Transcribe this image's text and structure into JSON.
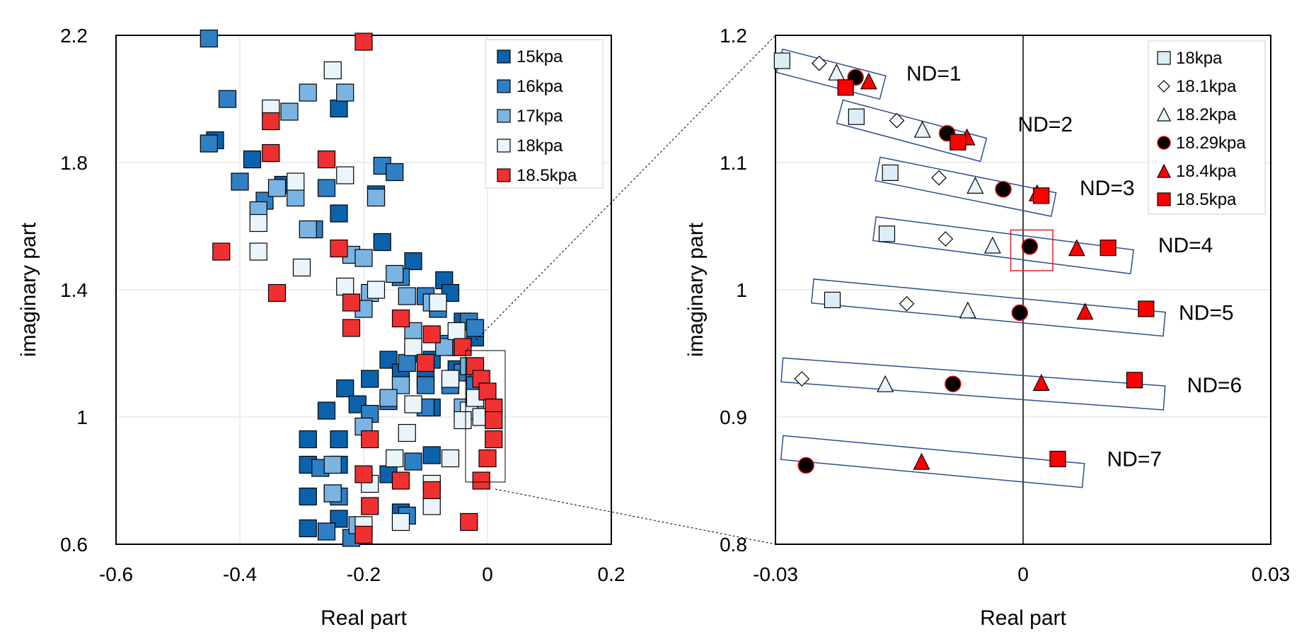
{
  "chart_data": [
    {
      "type": "scatter",
      "title": "",
      "xlabel": "Real part",
      "ylabel": "imaginary part",
      "xlim": [
        -0.6,
        0.2
      ],
      "ylim": [
        0.6,
        2.2
      ],
      "xticks": [
        "-0.6",
        "-0.4",
        "-0.2",
        "0",
        "0.2"
      ],
      "yticks": [
        "0.6",
        "1",
        "1.4",
        "1.8",
        "2.2"
      ],
      "ytick_values": [
        0.6,
        1.0,
        1.4,
        1.8,
        2.2
      ],
      "xtick_values": [
        -0.6,
        -0.4,
        -0.2,
        0,
        0.2
      ],
      "grid": true,
      "legend_position": "top-right",
      "series": [
        {
          "name": "15kpa",
          "color": "#0a62ad",
          "marker": "square",
          "points": [
            [
              -0.44,
              1.87
            ],
            [
              -0.38,
              1.81
            ],
            [
              -0.33,
              1.73
            ],
            [
              -0.24,
              1.64
            ],
            [
              -0.24,
              1.97
            ],
            [
              -0.18,
              1.7
            ],
            [
              -0.17,
              1.55
            ],
            [
              -0.12,
              1.49
            ],
            [
              -0.07,
              1.43
            ],
            [
              -0.06,
              1.39
            ],
            [
              -0.04,
              1.3
            ],
            [
              -0.05,
              1.22
            ],
            [
              -0.09,
              1.18
            ],
            [
              -0.12,
              1.2
            ],
            [
              -0.16,
              1.18
            ],
            [
              -0.14,
              1.14
            ],
            [
              -0.1,
              1.12
            ],
            [
              -0.19,
              1.12
            ],
            [
              -0.23,
              1.09
            ],
            [
              -0.21,
              1.04
            ],
            [
              -0.26,
              1.02
            ],
            [
              -0.24,
              0.93
            ],
            [
              -0.29,
              0.93
            ],
            [
              -0.29,
              0.85
            ],
            [
              -0.29,
              0.75
            ],
            [
              -0.24,
              0.85
            ],
            [
              -0.25,
              0.76
            ],
            [
              -0.24,
              0.68
            ],
            [
              -0.29,
              0.65
            ],
            [
              -0.16,
              0.82
            ],
            [
              -0.09,
              1.03
            ],
            [
              -0.05,
              1.15
            ],
            [
              -0.02,
              1.25
            ],
            [
              -0.09,
              0.88
            ],
            [
              -0.14,
              0.7
            ]
          ]
        },
        {
          "name": "16kpa",
          "color": "#2f7fc4",
          "marker": "square",
          "points": [
            [
              -0.45,
              2.19
            ],
            [
              -0.42,
              2.0
            ],
            [
              -0.45,
              1.86
            ],
            [
              -0.4,
              1.74
            ],
            [
              -0.36,
              1.68
            ],
            [
              -0.28,
              1.59
            ],
            [
              -0.26,
              1.72
            ],
            [
              -0.17,
              1.79
            ],
            [
              -0.15,
              1.77
            ],
            [
              -0.14,
              1.44
            ],
            [
              -0.1,
              1.38
            ],
            [
              -0.08,
              1.34
            ],
            [
              -0.03,
              1.3
            ],
            [
              -0.02,
              1.28
            ],
            [
              -0.07,
              1.23
            ],
            [
              -0.13,
              1.17
            ],
            [
              -0.19,
              1.01
            ],
            [
              -0.1,
              1.1
            ],
            [
              -0.16,
              1.05
            ],
            [
              -0.04,
              1.14
            ],
            [
              -0.02,
              1.1
            ],
            [
              -0.05,
              1.22
            ],
            [
              -0.27,
              0.84
            ],
            [
              -0.24,
              0.75
            ],
            [
              -0.26,
              0.64
            ],
            [
              -0.22,
              0.62
            ],
            [
              -0.13,
              0.69
            ],
            [
              -0.1,
              1.03
            ],
            [
              -0.06,
              1.1
            ],
            [
              -0.12,
              0.86
            ]
          ]
        },
        {
          "name": "17kpa",
          "color": "#7ab4e2",
          "marker": "square",
          "points": [
            [
              -0.29,
              2.02
            ],
            [
              -0.23,
              2.02
            ],
            [
              -0.32,
              1.96
            ],
            [
              -0.34,
              1.72
            ],
            [
              -0.31,
              1.69
            ],
            [
              -0.37,
              1.65
            ],
            [
              -0.29,
              1.59
            ],
            [
              -0.22,
              1.51
            ],
            [
              -0.2,
              1.5
            ],
            [
              -0.18,
              1.69
            ],
            [
              -0.19,
              1.39
            ],
            [
              -0.15,
              1.45
            ],
            [
              -0.13,
              1.38
            ],
            [
              -0.12,
              1.27
            ],
            [
              -0.09,
              1.36
            ],
            [
              -0.07,
              1.22
            ],
            [
              -0.2,
              1.34
            ],
            [
              -0.14,
              1.1
            ],
            [
              -0.03,
              1.16
            ],
            [
              -0.04,
              1.03
            ],
            [
              -0.02,
              1.05
            ],
            [
              -0.16,
              1.06
            ],
            [
              -0.2,
              0.97
            ],
            [
              -0.25,
              0.85
            ],
            [
              -0.21,
              0.66
            ],
            [
              -0.25,
              0.76
            ]
          ]
        },
        {
          "name": "18kpa",
          "color": "#eaf5fb",
          "marker": "square",
          "points": [
            [
              -0.25,
              2.09
            ],
            [
              -0.35,
              1.97
            ],
            [
              -0.31,
              1.74
            ],
            [
              -0.37,
              1.61
            ],
            [
              -0.37,
              1.52
            ],
            [
              -0.3,
              1.47
            ],
            [
              -0.23,
              1.76
            ],
            [
              -0.23,
              1.41
            ],
            [
              -0.18,
              1.4
            ],
            [
              -0.12,
              1.22
            ],
            [
              -0.08,
              1.36
            ],
            [
              -0.05,
              1.27
            ],
            [
              -0.12,
              1.04
            ],
            [
              -0.06,
              1.12
            ],
            [
              -0.03,
              1.02
            ],
            [
              -0.02,
              1.06
            ],
            [
              -0.04,
              0.99
            ],
            [
              -0.13,
              0.95
            ],
            [
              -0.15,
              0.87
            ],
            [
              -0.06,
              0.87
            ],
            [
              -0.09,
              0.79
            ],
            [
              -0.01,
              1.0
            ],
            [
              -0.14,
              0.67
            ],
            [
              -0.19,
              0.79
            ],
            [
              -0.09,
              0.72
            ],
            [
              -0.2,
              0.66
            ]
          ]
        },
        {
          "name": "18.5kpa",
          "color": "#f03030",
          "marker": "square",
          "points": [
            [
              -0.2,
              2.18
            ],
            [
              -0.35,
              1.93
            ],
            [
              -0.35,
              1.83
            ],
            [
              -0.26,
              1.81
            ],
            [
              -0.43,
              1.52
            ],
            [
              -0.24,
              1.53
            ],
            [
              -0.34,
              1.39
            ],
            [
              -0.22,
              1.36
            ],
            [
              -0.22,
              1.28
            ],
            [
              -0.14,
              1.31
            ],
            [
              -0.09,
              1.26
            ],
            [
              -0.04,
              1.22
            ],
            [
              -0.02,
              1.16
            ],
            [
              -0.1,
              1.17
            ],
            [
              -0.01,
              1.12
            ],
            [
              0.0,
              1.08
            ],
            [
              0.01,
              1.03
            ],
            [
              0.01,
              0.99
            ],
            [
              0.01,
              0.93
            ],
            [
              0.0,
              0.87
            ],
            [
              -0.01,
              0.8
            ],
            [
              -0.19,
              0.93
            ],
            [
              -0.2,
              0.82
            ],
            [
              -0.19,
              0.72
            ],
            [
              -0.2,
              0.63
            ],
            [
              -0.14,
              0.8
            ],
            [
              -0.09,
              0.77
            ],
            [
              -0.03,
              0.67
            ]
          ]
        }
      ]
    },
    {
      "type": "scatter",
      "title": "",
      "xlabel": "Real part",
      "ylabel": "imaginary part",
      "xlim": [
        -0.03,
        0.03
      ],
      "ylim": [
        0.8,
        1.2
      ],
      "xticks": [
        "-0.03",
        "0",
        "0.03"
      ],
      "xtick_values": [
        -0.03,
        0,
        0.03
      ],
      "yticks": [
        "0.8",
        "0.9",
        "1",
        "1.1",
        "1.2"
      ],
      "ytick_values": [
        0.8,
        0.9,
        1.0,
        1.1,
        1.2
      ],
      "grid": true,
      "legend_position": "top-right",
      "series": [
        {
          "name": "18kpa",
          "marker": "square",
          "color": "#d9eef7",
          "points": [
            [
              -0.0292,
              1.18
            ],
            [
              -0.0202,
              1.136
            ],
            [
              -0.0161,
              1.092
            ],
            [
              -0.0165,
              1.044
            ],
            [
              -0.0231,
              0.992
            ]
          ]
        },
        {
          "name": "18.1kpa",
          "marker": "diamond",
          "color": "#ffffff",
          "points": [
            [
              -0.0247,
              1.178
            ],
            [
              -0.0153,
              1.133
            ],
            [
              -0.0102,
              1.088
            ],
            [
              -0.0094,
              1.04
            ],
            [
              -0.0141,
              0.989
            ],
            [
              -0.0268,
              0.93
            ]
          ]
        },
        {
          "name": "18.2kpa",
          "marker": "triangle",
          "color": "#e8f4fb",
          "points": [
            [
              -0.0226,
              1.171
            ],
            [
              -0.0122,
              1.126
            ],
            [
              -0.0058,
              1.082
            ],
            [
              -0.0037,
              1.035
            ],
            [
              -0.0067,
              0.984
            ],
            [
              -0.0167,
              0.926
            ]
          ]
        },
        {
          "name": "18.29kpa",
          "marker": "circle",
          "color": "#000000",
          "points": [
            [
              -0.0203,
              1.167
            ],
            [
              -0.0092,
              1.123
            ],
            [
              -0.0024,
              1.079
            ],
            [
              0.0008,
              1.034
            ],
            [
              -0.0004,
              0.982
            ],
            [
              -0.0085,
              0.926
            ],
            [
              -0.0263,
              0.862
            ]
          ]
        },
        {
          "name": "18.4kpa",
          "marker": "triangle",
          "color": "#ff0000",
          "points": [
            [
              -0.0187,
              1.164
            ],
            [
              -0.0068,
              1.12
            ],
            [
              0.0017,
              1.076
            ],
            [
              0.0065,
              1.033
            ],
            [
              0.0075,
              0.983
            ],
            [
              0.0022,
              0.927
            ],
            [
              -0.0123,
              0.865
            ]
          ]
        },
        {
          "name": "18.5kpa",
          "marker": "square",
          "color": "#ff0000",
          "points": [
            [
              -0.0215,
              1.159
            ],
            [
              -0.0079,
              1.116
            ],
            [
              0.0022,
              1.074
            ],
            [
              0.0103,
              1.033
            ],
            [
              0.0149,
              0.985
            ],
            [
              0.0135,
              0.929
            ],
            [
              0.0042,
              0.867
            ]
          ]
        }
      ],
      "annotations": [
        "ND=1",
        "ND=2",
        "ND=3",
        "ND=4",
        "ND=5",
        "ND=6",
        "ND=7"
      ],
      "annotation_points": [
        [
          -0.015,
          1.17
        ],
        [
          -0.0015,
          1.13
        ],
        [
          0.006,
          1.08
        ],
        [
          0.0155,
          1.035
        ],
        [
          0.018,
          0.982
        ],
        [
          0.019,
          0.925
        ],
        [
          0.0093,
          0.867
        ]
      ],
      "groups": [
        {
          "y": [
            1.18,
            1.159
          ],
          "x": [
            -0.0295,
            -0.017
          ]
        },
        {
          "y": [
            1.14,
            1.11
          ],
          "x": [
            -0.0222,
            -0.0048
          ]
        },
        {
          "y": [
            1.095,
            1.067
          ],
          "x": [
            -0.0176,
            0.0037
          ]
        },
        {
          "y": [
            1.048,
            1.022
          ],
          "x": [
            -0.018,
            0.0132
          ]
        },
        {
          "y": [
            0.999,
            0.973
          ],
          "x": [
            -0.0255,
            0.0171
          ]
        },
        {
          "y": [
            0.937,
            0.915
          ],
          "x": [
            -0.0292,
            0.0171
          ]
        },
        {
          "y": [
            0.876,
            0.854
          ],
          "x": [
            -0.0292,
            0.0073
          ]
        }
      ],
      "highlight": {
        "x": [
          -0.0015,
          0.0036
        ],
        "y": [
          1.047,
          1.015
        ]
      },
      "vertical_line_x": 0
    }
  ]
}
